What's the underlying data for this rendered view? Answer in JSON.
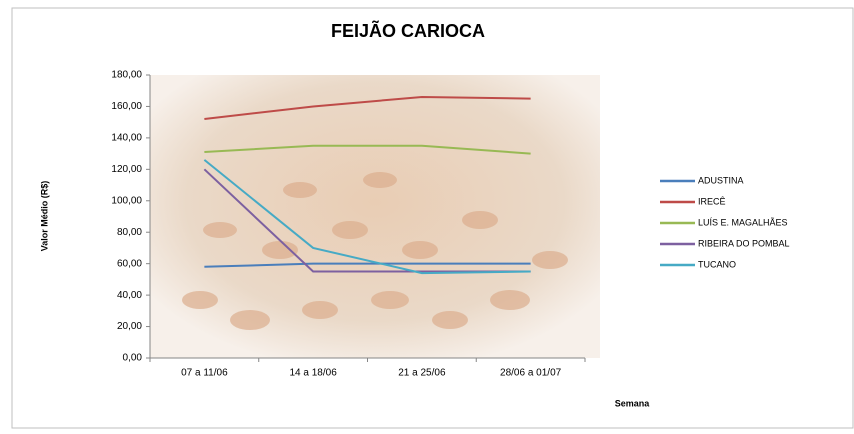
{
  "chart_data": {
    "type": "line",
    "title": "FEIJÃO CARIOCA",
    "x_label": "Semana",
    "y_label": "Valor Médio (R$)",
    "categories": [
      "07 a 11/06",
      "14 a 18/06",
      "21 a 25/06",
      "28/06 a 01/07"
    ],
    "series": [
      {
        "name": "ADUSTINA",
        "color": "#4a7ebb",
        "values": [
          58,
          60,
          60,
          60
        ]
      },
      {
        "name": "IRECÊ",
        "color": "#be4b48",
        "values": [
          152,
          160,
          166,
          165
        ]
      },
      {
        "name": "LUÍS E. MAGALHÃES",
        "color": "#98b954",
        "values": [
          131,
          135,
          135,
          130
        ]
      },
      {
        "name": "RIBEIRA DO POMBAL",
        "color": "#7d60a0",
        "values": [
          120,
          55,
          55,
          55
        ]
      },
      {
        "name": "TUCANO",
        "color": "#46aac5",
        "values": [
          126,
          70,
          54,
          55
        ]
      }
    ],
    "ylim": [
      0,
      180
    ],
    "yticks": [
      {
        "value": 0,
        "label": "0,00"
      },
      {
        "value": 20,
        "label": "20,00"
      },
      {
        "value": 40,
        "label": "40,00"
      },
      {
        "value": 60,
        "label": "60,00"
      },
      {
        "value": 80,
        "label": "80,00"
      },
      {
        "value": 100,
        "label": "100,00"
      },
      {
        "value": 120,
        "label": "120,00"
      },
      {
        "value": 140,
        "label": "140,00"
      },
      {
        "value": 160,
        "label": "160,00"
      },
      {
        "value": 180,
        "label": "180,00"
      }
    ],
    "legend": "right"
  }
}
